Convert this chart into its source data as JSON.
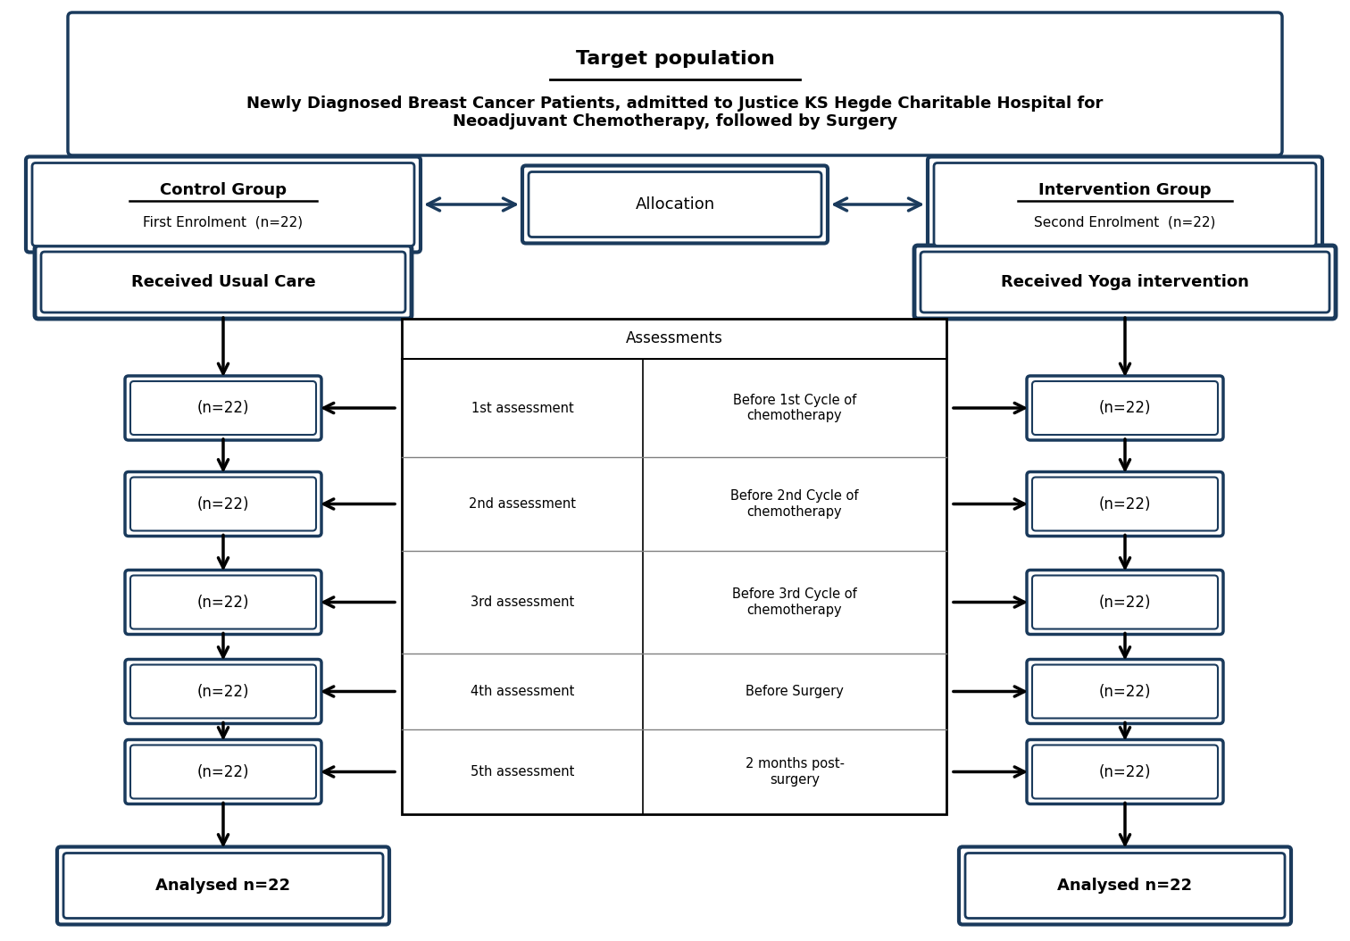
{
  "bg_color": "#ffffff",
  "dark_border": "#1a3a5c",
  "light_border": "#000000",
  "arrow_color": "#1a3a5c",
  "text_color": "#000000",
  "title_box": {
    "title": "Target population",
    "subtitle": "Newly Diagnosed Breast Cancer Patients, admitted to Justice KS Hegde Charitable Hospital for\nNeoadjuvant Chemotherapy, followed by Surgery"
  },
  "control_group": {
    "title": "Control Group",
    "subtitle": "First Enrolment  (n=22)"
  },
  "allocation": "Allocation",
  "intervention_group": {
    "title": "Intervention Group",
    "subtitle": "Second Enrolment  (n=22)"
  },
  "received_usual": "Received Usual Care",
  "received_yoga": "Received Yoga intervention",
  "assessments_header": "Assessments",
  "assessment_rows": [
    [
      "1st assessment",
      "Before 1st Cycle of\nchemotherapy"
    ],
    [
      "2nd assessment",
      "Before 2nd Cycle of\nchemotherapy"
    ],
    [
      "3rd assessment",
      "Before 3rd Cycle of\nchemotherapy"
    ],
    [
      "4th assessment",
      "Before Surgery"
    ],
    [
      "5th assessment",
      "2 months post-\nsurgery"
    ]
  ],
  "analysed_left": "Analysed n=22",
  "analysed_right": "Analysed n=22",
  "n_values": [
    "(n=22)",
    "(n=22)",
    "(n=22)",
    "(n=22)",
    "(n=22)"
  ]
}
